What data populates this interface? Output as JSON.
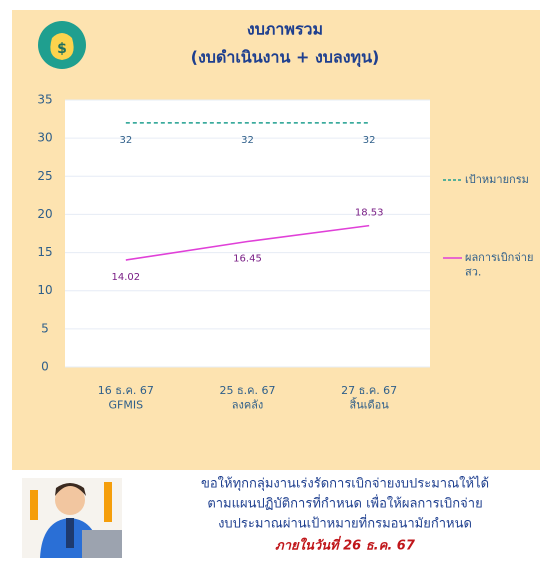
{
  "chart_data": {
    "type": "line",
    "title": "งบภาพรวม",
    "subtitle": "(งบดำเนินงาน + งบลงทุน)",
    "categories": [
      "16 ธ.ค. 67\nGFMIS",
      "25 ธ.ค. 67\nลงคลัง",
      "27 ธ.ค. 67\nสิ้นเดือน"
    ],
    "series": [
      {
        "name": "เป้าหมายกรม",
        "color": "#1f9f8f",
        "dashed": true,
        "values": [
          32,
          32,
          32
        ]
      },
      {
        "name": "ผลการเบิกจ่าย สว.",
        "color": "#e040d8",
        "dashed": false,
        "values": [
          14.02,
          16.45,
          18.53
        ]
      }
    ],
    "ylim": [
      0,
      35
    ],
    "yticks": [
      0,
      5,
      10,
      15,
      20,
      25,
      30,
      35
    ],
    "grid": true,
    "legend": "right"
  },
  "notice": {
    "lines": [
      "ขอให้ทุกกลุ่มงานเร่งรัดการเบิกจ่ายงบประมาณให้ได้",
      "ตามแผนปฏิบัติการที่กำหนด เพื่อให้ผลการเบิกจ่าย",
      "งบประมาณผ่านเป้าหมายที่กรมอนามัยกำหนด"
    ],
    "deadline": "ภายในวันที่ 26 ธ.ค. 67"
  }
}
